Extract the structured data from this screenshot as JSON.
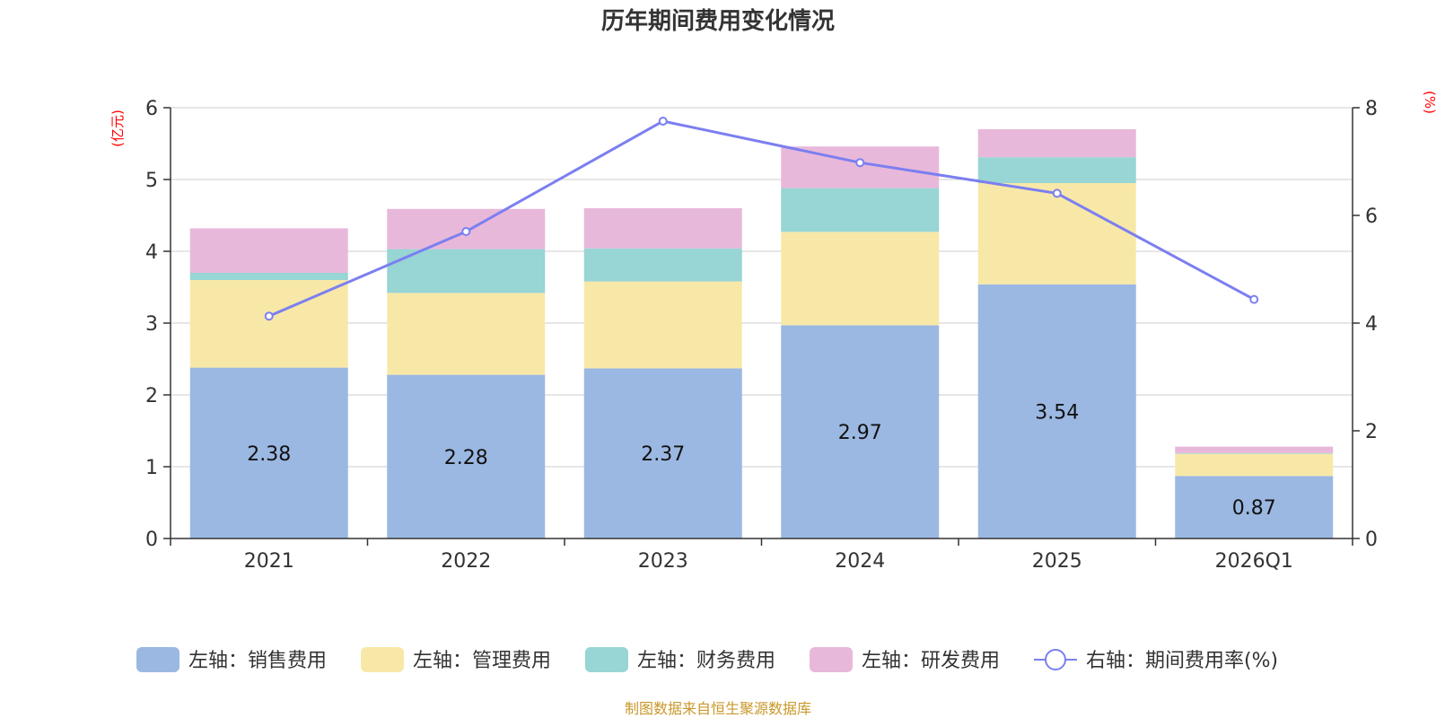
{
  "title": "历年期间费用变化情况",
  "source_note": "制图数据来自恒生聚源数据库",
  "colors": {
    "sales": "#9bb8e2",
    "admin": "#f8e8a8",
    "finance": "#98d5d5",
    "rnd": "#e8b8da",
    "line": "#7b7ff0",
    "grid": "#cccccc",
    "axis": "#333333",
    "unit": "#ff0000",
    "source": "#c8982a"
  },
  "chart_data": {
    "type": "bar",
    "stacked": true,
    "title": "历年期间费用变化情况",
    "categories": [
      "2021",
      "2022",
      "2023",
      "2024",
      "2025",
      "2026Q1"
    ],
    "left_axis": {
      "label": "(亿元)",
      "ylim": [
        0,
        6
      ],
      "ticks": [
        0,
        1,
        2,
        3,
        4,
        5,
        6
      ]
    },
    "right_axis": {
      "label": "(%)",
      "ylim": [
        0,
        8
      ],
      "ticks": [
        0,
        2,
        4,
        6,
        8
      ]
    },
    "series": [
      {
        "key": "sales",
        "name": "左轴：销售费用",
        "axis": "left",
        "kind": "bar",
        "values": [
          2.38,
          2.28,
          2.37,
          2.97,
          3.54,
          0.87
        ],
        "show_labels": true
      },
      {
        "key": "admin",
        "name": "左轴：管理费用",
        "axis": "left",
        "kind": "bar",
        "values": [
          1.22,
          1.14,
          1.21,
          1.3,
          1.41,
          0.31
        ],
        "show_labels": false
      },
      {
        "key": "finance",
        "name": "左轴：财务费用",
        "axis": "left",
        "kind": "bar",
        "values": [
          0.1,
          0.61,
          0.46,
          0.61,
          0.36,
          0.01
        ],
        "show_labels": false
      },
      {
        "key": "rnd",
        "name": "左轴：研发费用",
        "axis": "left",
        "kind": "bar",
        "values": [
          0.62,
          0.56,
          0.56,
          0.58,
          0.39,
          0.09
        ],
        "show_labels": false
      },
      {
        "key": "line",
        "name": "右轴：期间费用率(%)",
        "axis": "right",
        "kind": "line",
        "values": [
          4.13,
          5.7,
          7.75,
          6.98,
          6.41,
          4.44
        ],
        "show_labels": false
      }
    ],
    "legend_position": "bottom",
    "grid": true
  }
}
